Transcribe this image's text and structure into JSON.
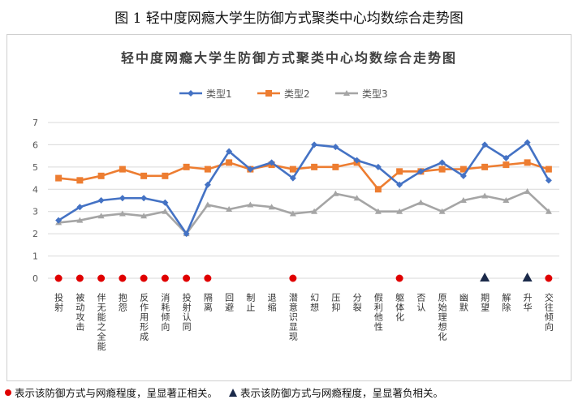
{
  "figure_caption": "图 1 轻中度网瘾大学生防御方式聚类中心均数综合走势图",
  "footnote": {
    "positive": "表示该防御方式与网瘾程度，呈显著正相关。",
    "negative": "表示该防御方式与网瘾程度，呈显著负相关。"
  },
  "colors": {
    "series1": "#4472c4",
    "series2": "#ed7d31",
    "series3": "#a5a5a5",
    "positive_marker": "#e00000",
    "negative_marker": "#1b2a4a",
    "grid": "#d9d9d9"
  },
  "chart_data": {
    "type": "line",
    "title": "轻中度网瘾大学生防御方式聚类中心均数综合走势图",
    "xlabel": "",
    "ylabel": "",
    "ylim": [
      0,
      7
    ],
    "yticks": [
      "0",
      "1",
      "2",
      "3",
      "4",
      "5",
      "6",
      "7"
    ],
    "grid": true,
    "legend_position": "top",
    "categories": [
      "投射",
      "被动攻击",
      "伴无能之全能",
      "抱怨",
      "反作用形成",
      "消耗倾向",
      "投射认同",
      "隔离",
      "回避",
      "制止",
      "退缩",
      "潜意识显现",
      "幻想",
      "压抑",
      "分裂",
      "假利他性",
      "躯体化",
      "否认",
      "原始理想化",
      "幽默",
      "期望",
      "解除",
      "升华",
      "交往倾向"
    ],
    "series": [
      {
        "name": "类型1",
        "values": [
          2.6,
          3.2,
          3.5,
          3.6,
          3.6,
          3.4,
          2.0,
          4.2,
          5.7,
          4.9,
          5.2,
          4.5,
          6.0,
          5.9,
          5.3,
          5.0,
          4.2,
          4.8,
          5.2,
          4.6,
          6.0,
          5.4,
          6.1,
          4.4
        ]
      },
      {
        "name": "类型2",
        "values": [
          4.5,
          4.4,
          4.6,
          4.9,
          4.6,
          4.6,
          5.0,
          4.9,
          5.2,
          4.9,
          5.1,
          4.9,
          5.0,
          5.0,
          5.2,
          4.0,
          4.8,
          4.8,
          4.9,
          4.9,
          5.0,
          5.1,
          5.2,
          4.9
        ]
      },
      {
        "name": "类型3",
        "values": [
          2.5,
          2.6,
          2.8,
          2.9,
          2.8,
          3.0,
          2.0,
          3.3,
          3.1,
          3.3,
          3.2,
          2.9,
          3.0,
          3.8,
          3.6,
          3.0,
          3.0,
          3.4,
          3.0,
          3.5,
          3.7,
          3.5,
          3.9,
          3.0
        ]
      }
    ],
    "significance": [
      "positive",
      "positive",
      "positive",
      "positive",
      "positive",
      "positive",
      "positive",
      "positive",
      "",
      "",
      "",
      "positive",
      "",
      "",
      "",
      "",
      "positive",
      "",
      "",
      "",
      "negative",
      "",
      "negative",
      "positive"
    ]
  }
}
